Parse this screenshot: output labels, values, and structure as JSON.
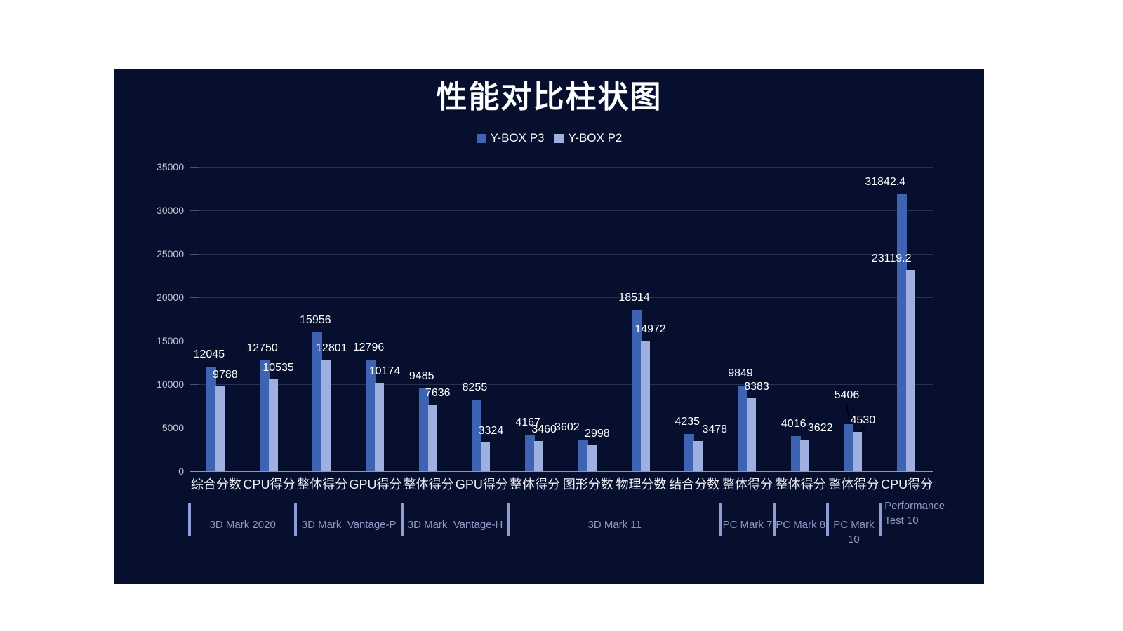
{
  "title": "性能对比柱状图",
  "colors": {
    "page_bg": "#ffffff",
    "panel_bg": "#060f2e",
    "grid_line": "#273252",
    "tick_segment": "#49536f",
    "axis_line": "#8e99ad",
    "tick_text": "#c3c7d6",
    "category_text": "#eef0f6",
    "value_text": "#ffffff",
    "group_text": "#8d97c2",
    "separator": "#8c9dd6",
    "title_text": "#ffffff",
    "legend_text": "#ffffff",
    "leader_line": "#000000",
    "series_p3": "#3e63b3",
    "series_p2": "#9fafe0"
  },
  "chart_data": {
    "type": "bar",
    "title": "性能对比柱状图",
    "categories": [
      "综合分数",
      "CPU得分",
      "整体得分",
      "GPU得分",
      "整体得分",
      "GPU得分",
      "整体得分",
      "图形分数",
      "物理分数",
      "结合分数",
      "整体得分",
      "整体得分",
      "整体得分",
      "CPU得分"
    ],
    "series": [
      {
        "name": "Y-BOX P3",
        "color": "#3e63b3",
        "values": [
          12045,
          12750,
          15956,
          12796,
          9485,
          8255,
          4167,
          3602,
          18514,
          4235,
          9849,
          4016,
          5406,
          31842.4
        ]
      },
      {
        "name": "Y-BOX P2",
        "color": "#9fafe0",
        "values": [
          9788,
          10535,
          12801,
          10174,
          7636,
          3324,
          3460,
          2998,
          14972,
          3478,
          8383,
          3622,
          4530,
          23119.2
        ]
      }
    ],
    "groups": [
      {
        "label": "3D Mark 2020",
        "span": [
          0,
          1
        ]
      },
      {
        "label": "3D Mark  Vantage-P",
        "span": [
          2,
          3
        ]
      },
      {
        "label": "3D Mark  Vantage-H",
        "span": [
          4,
          5
        ]
      },
      {
        "label": "3D Mark 11",
        "span": [
          6,
          9
        ]
      },
      {
        "label": "PC Mark 7",
        "span": [
          10,
          10
        ]
      },
      {
        "label": "PC Mark 8",
        "span": [
          11,
          11
        ]
      },
      {
        "label": "PC Mark 10",
        "span": [
          12,
          12
        ]
      },
      {
        "label": "Performance Test 10",
        "span": [
          13,
          13
        ],
        "wrap": true
      }
    ],
    "xlabel": "",
    "ylabel": "",
    "ylim": [
      0,
      35000
    ],
    "yticks": [
      0,
      5000,
      10000,
      15000,
      20000,
      25000,
      30000,
      35000
    ],
    "grid": true,
    "legend_position": "top",
    "value_labels": true
  }
}
